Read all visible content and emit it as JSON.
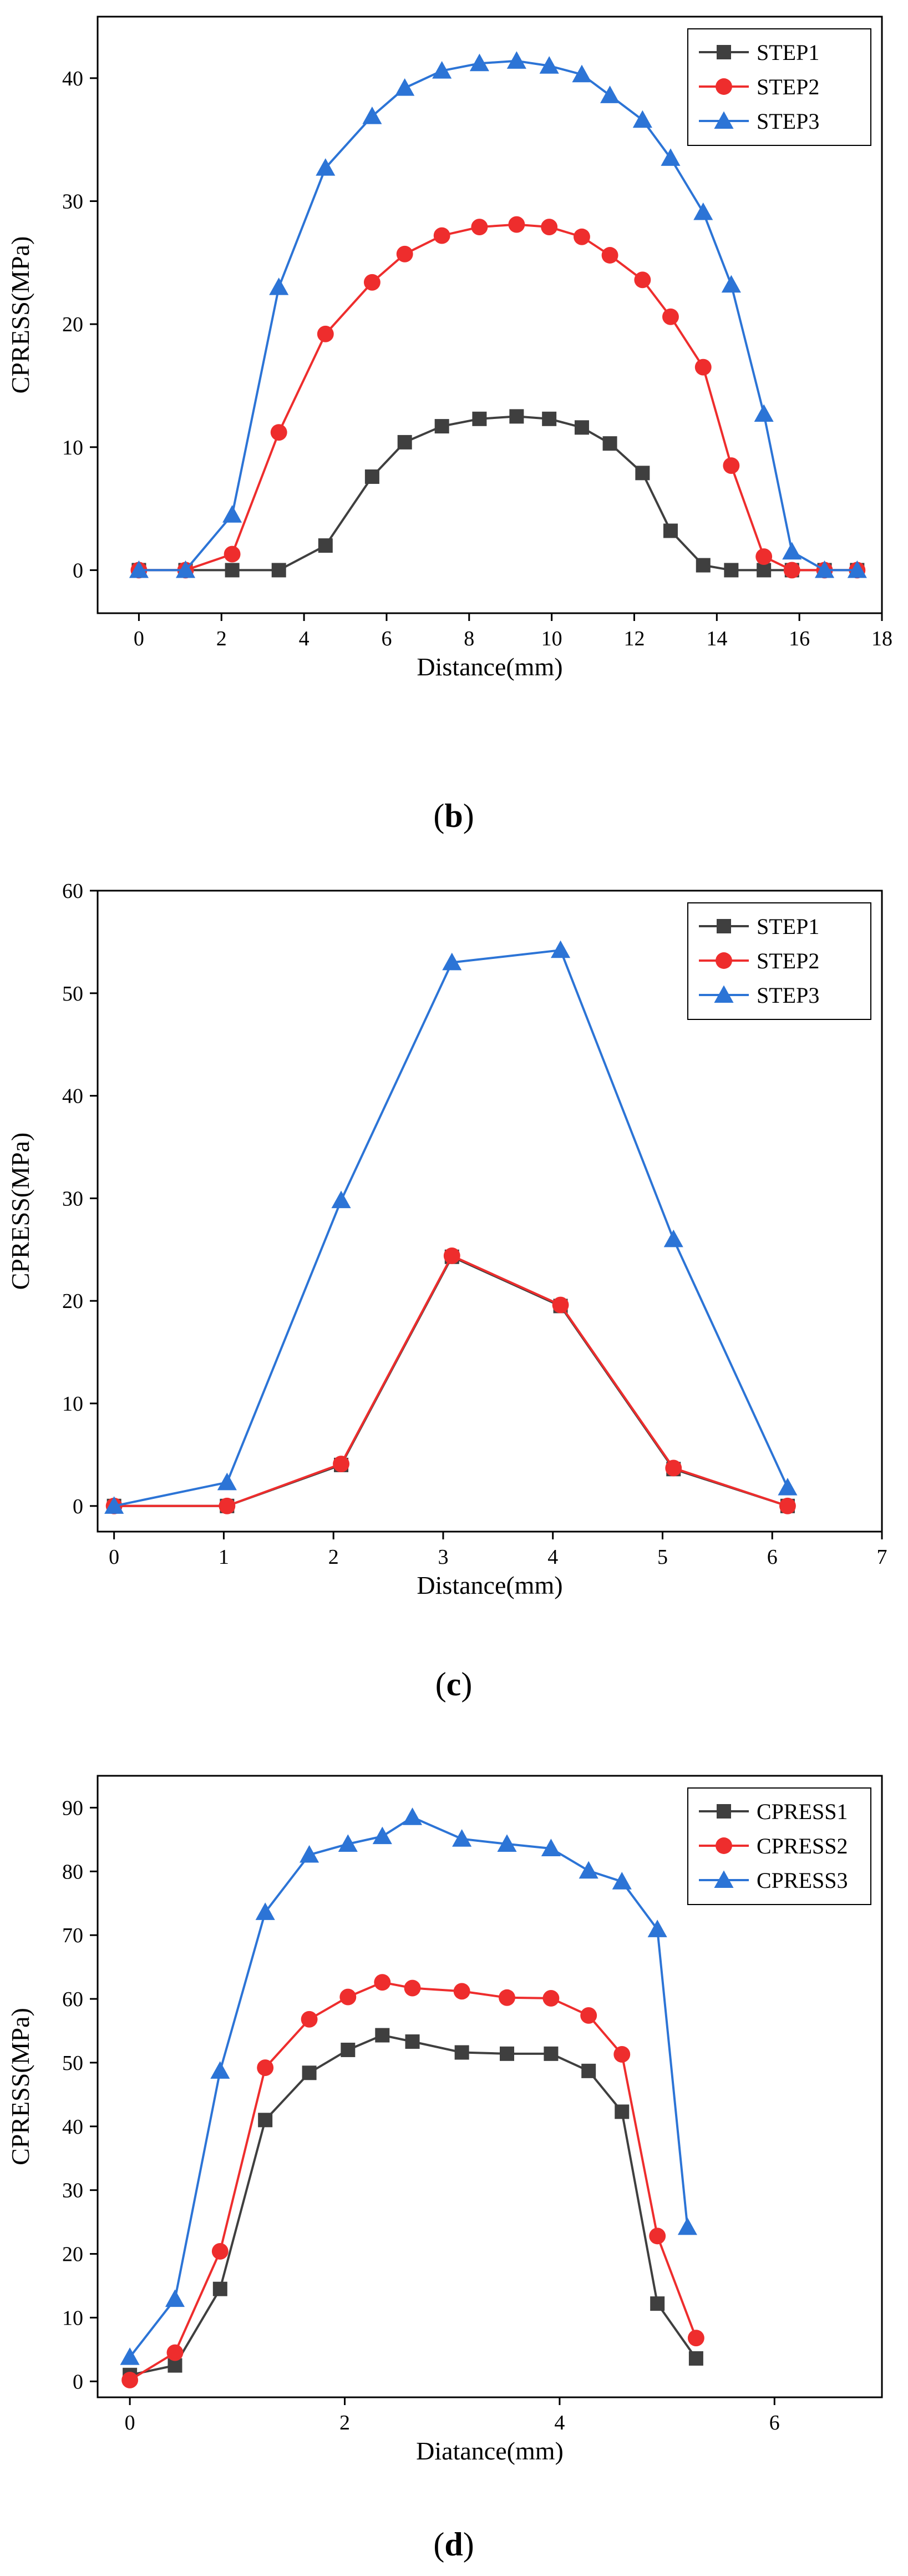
{
  "panels": [
    {
      "label_open": "(",
      "label_letter": "b",
      "label_close": ")"
    },
    {
      "label_open": "(",
      "label_letter": "c",
      "label_close": ")"
    },
    {
      "label_open": "(",
      "label_letter": "d",
      "label_close": ")"
    }
  ],
  "colors": {
    "series1": "#3f3f3f",
    "series2": "#ee2d2d",
    "series3": "#2c74d6"
  },
  "chart_data": [
    {
      "type": "line",
      "panel": "b",
      "title": "",
      "xlabel": "Distance(mm)",
      "ylabel": "CPRESS(MPa)",
      "xlim": [
        -1,
        18
      ],
      "ylim": [
        -3.5,
        45
      ],
      "xticks": [
        0,
        2,
        4,
        6,
        8,
        10,
        12,
        14,
        16,
        18
      ],
      "yticks": [
        0,
        10,
        20,
        30,
        40
      ],
      "legend_position": "top-right",
      "series": [
        {
          "name": "STEP1",
          "marker": "square",
          "x": [
            0,
            1.13,
            2.26,
            3.39,
            4.52,
            5.65,
            6.44,
            7.34,
            8.25,
            9.15,
            9.94,
            10.73,
            11.41,
            12.2,
            12.88,
            13.67,
            14.35,
            15.14,
            15.82,
            16.61,
            17.4
          ],
          "y": [
            0,
            0,
            0,
            0,
            2,
            7.6,
            10.4,
            11.7,
            12.3,
            12.5,
            12.3,
            11.6,
            10.3,
            7.9,
            3.2,
            0.4,
            0,
            0,
            0,
            0,
            0
          ]
        },
        {
          "name": "STEP2",
          "marker": "circle",
          "x": [
            0,
            1.13,
            2.26,
            3.39,
            4.52,
            5.65,
            6.44,
            7.34,
            8.25,
            9.15,
            9.94,
            10.73,
            11.41,
            12.2,
            12.88,
            13.67,
            14.35,
            15.14,
            15.82,
            16.61,
            17.4
          ],
          "y": [
            0,
            0,
            1.3,
            11.2,
            19.2,
            23.4,
            25.7,
            27.2,
            27.9,
            28.1,
            27.9,
            27.1,
            25.6,
            23.6,
            20.6,
            16.5,
            8.5,
            1.1,
            0,
            0,
            0
          ]
        },
        {
          "name": "STEP3",
          "marker": "triangle",
          "x": [
            0,
            1.13,
            2.26,
            3.39,
            4.52,
            5.65,
            6.44,
            7.34,
            8.25,
            9.15,
            9.94,
            10.73,
            11.41,
            12.2,
            12.88,
            13.67,
            14.35,
            15.14,
            15.82,
            16.61,
            17.4
          ],
          "y": [
            0,
            0,
            4.5,
            23,
            32.7,
            36.9,
            39.2,
            40.6,
            41.2,
            41.4,
            41,
            40.3,
            38.6,
            36.6,
            33.5,
            29.1,
            23.2,
            12.7,
            1.5,
            0,
            0
          ]
        }
      ]
    },
    {
      "type": "line",
      "panel": "c",
      "title": "",
      "xlabel": "Distance(mm)",
      "ylabel": "CPRESS(MPa)",
      "xlim": [
        -0.15,
        7
      ],
      "ylim": [
        -2.5,
        60
      ],
      "xticks": [
        0,
        1,
        2,
        3,
        4,
        5,
        6,
        7
      ],
      "yticks": [
        0,
        10,
        20,
        30,
        40,
        50,
        60
      ],
      "legend_position": "top-right",
      "series": [
        {
          "name": "STEP1",
          "marker": "square",
          "x": [
            0,
            1.03,
            2.07,
            3.08,
            4.07,
            5.1,
            6.14
          ],
          "y": [
            0,
            0,
            4,
            24.3,
            19.5,
            3.6,
            0
          ]
        },
        {
          "name": "STEP2",
          "marker": "circle",
          "x": [
            0,
            1.03,
            2.07,
            3.08,
            4.07,
            5.1,
            6.14
          ],
          "y": [
            0,
            0,
            4.1,
            24.4,
            19.6,
            3.7,
            0
          ]
        },
        {
          "name": "STEP3",
          "marker": "triangle",
          "x": [
            0,
            1.03,
            2.07,
            3.08,
            4.07,
            5.1,
            6.14
          ],
          "y": [
            0,
            2.3,
            29.8,
            53,
            54.2,
            26,
            1.8
          ]
        }
      ]
    },
    {
      "type": "line",
      "panel": "d",
      "title": "",
      "xlabel": "Diatance(mm)",
      "ylabel": "CPRESS(MPa)",
      "xlim": [
        -0.3,
        7
      ],
      "ylim": [
        -2.5,
        95
      ],
      "xticks": [
        0,
        2,
        4,
        6
      ],
      "yticks": [
        0,
        10,
        20,
        30,
        40,
        50,
        60,
        70,
        80,
        90
      ],
      "legend_position": "top-right",
      "series": [
        {
          "name": "CPRESS1",
          "marker": "square",
          "x": [
            0,
            0.42,
            0.84,
            1.26,
            1.67,
            2.03,
            2.35,
            2.63,
            3.09,
            3.51,
            3.92,
            4.27,
            4.58,
            4.91,
            5.27
          ],
          "y": [
            1,
            2.5,
            14.5,
            41,
            48.4,
            52,
            54.3,
            53.3,
            51.6,
            51.4,
            51.4,
            48.7,
            42.3,
            12.2,
            3.6
          ]
        },
        {
          "name": "CPRESS2",
          "marker": "circle",
          "x": [
            0,
            0.42,
            0.84,
            1.26,
            1.67,
            2.03,
            2.35,
            2.63,
            3.09,
            3.51,
            3.92,
            4.27,
            4.58,
            4.91,
            5.27
          ],
          "y": [
            0.2,
            4.5,
            20.4,
            49.2,
            56.8,
            60.3,
            62.6,
            61.7,
            61.2,
            60.2,
            60.1,
            57.4,
            51.3,
            22.8,
            6.8
          ]
        },
        {
          "name": "CPRESS3",
          "marker": "triangle",
          "x": [
            0,
            0.42,
            0.84,
            1.26,
            1.67,
            2.03,
            2.35,
            2.63,
            3.09,
            3.51,
            3.92,
            4.27,
            4.58,
            4.91,
            5.19
          ],
          "y": [
            3.8,
            12.9,
            48.7,
            73.6,
            82.6,
            84.3,
            85.5,
            88.5,
            85.1,
            84.3,
            83.6,
            80.1,
            78.4,
            70.9,
            24.2
          ]
        }
      ]
    }
  ]
}
